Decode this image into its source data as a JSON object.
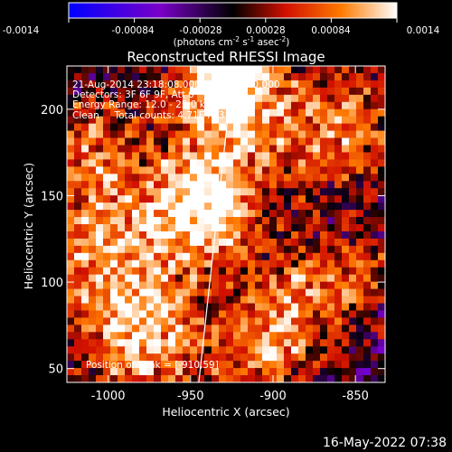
{
  "colorbar": {
    "tick_labels": [
      "-0.0014",
      "-0.00084",
      "-0.00028",
      "0.00028",
      "0.00084",
      "0.0014"
    ],
    "range": [
      -0.0014,
      0.0014
    ],
    "unit_parts": {
      "pre": "(photons cm",
      "sup1": "-2",
      "mid1": " s",
      "sup2": "-1",
      "mid2": " asec",
      "sup3": "-2",
      "post": ")"
    },
    "colors": [
      "#0000ff",
      "#7a00c8",
      "#000000",
      "#d11000",
      "#ff7a00",
      "#ffffff"
    ]
  },
  "chart_data": {
    "type": "heatmap",
    "title": "Reconstructed RHESSI Image",
    "xlabel": "Heliocentric X (arcsec)",
    "ylabel": "Heliocentric Y (arcsec)",
    "xlim": [
      -1025,
      -832
    ],
    "ylim": [
      42,
      225
    ],
    "x_ticks": [
      -1000,
      -950,
      -900,
      -850
    ],
    "y_ticks": [
      50,
      100,
      150,
      200
    ],
    "x_tick_labels": [
      "-1000",
      "-950",
      "-900",
      "-850"
    ],
    "y_tick_labels": [
      "50",
      "100",
      "150",
      "200"
    ],
    "limb_line": [
      [
        -945,
        42
      ],
      [
        -924,
        225
      ]
    ],
    "info_lines": [
      "21-Aug-2014 23:18:08.000 to 23:22:40.000",
      "Detectors: 3F 6F 9F, Att 0",
      "Energy Range: 12.0 - 25.0 keV",
      "Clean     Total counts: 4.71E+03"
    ],
    "peak_label": "Position of Peak = [-910,59]"
  },
  "footer": "16-May-2022 07:38"
}
